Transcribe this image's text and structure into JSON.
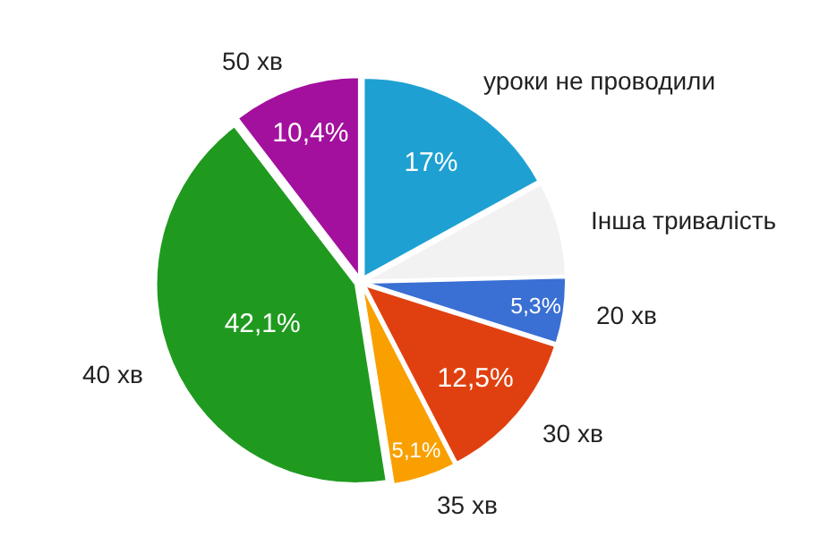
{
  "chart_data": {
    "type": "pie",
    "categories": [
      "уроки не проводили",
      "Інша тривалість",
      "20 хв",
      "30 хв",
      "35 хв",
      "40 хв",
      "50 хв"
    ],
    "values": [
      17,
      7.6,
      5.3,
      12.5,
      5.1,
      42.1,
      10.4
    ],
    "value_labels": [
      "17%",
      null,
      "5,3%",
      "12,5%",
      "5,1%",
      "42,1%",
      "10,4%"
    ],
    "colors": [
      "#1ea1d2",
      "#f2f2f2",
      "#3a6fd3",
      "#e0400f",
      "#f9a000",
      "#1f9a1f",
      "#a3109e"
    ],
    "legend": false
  }
}
